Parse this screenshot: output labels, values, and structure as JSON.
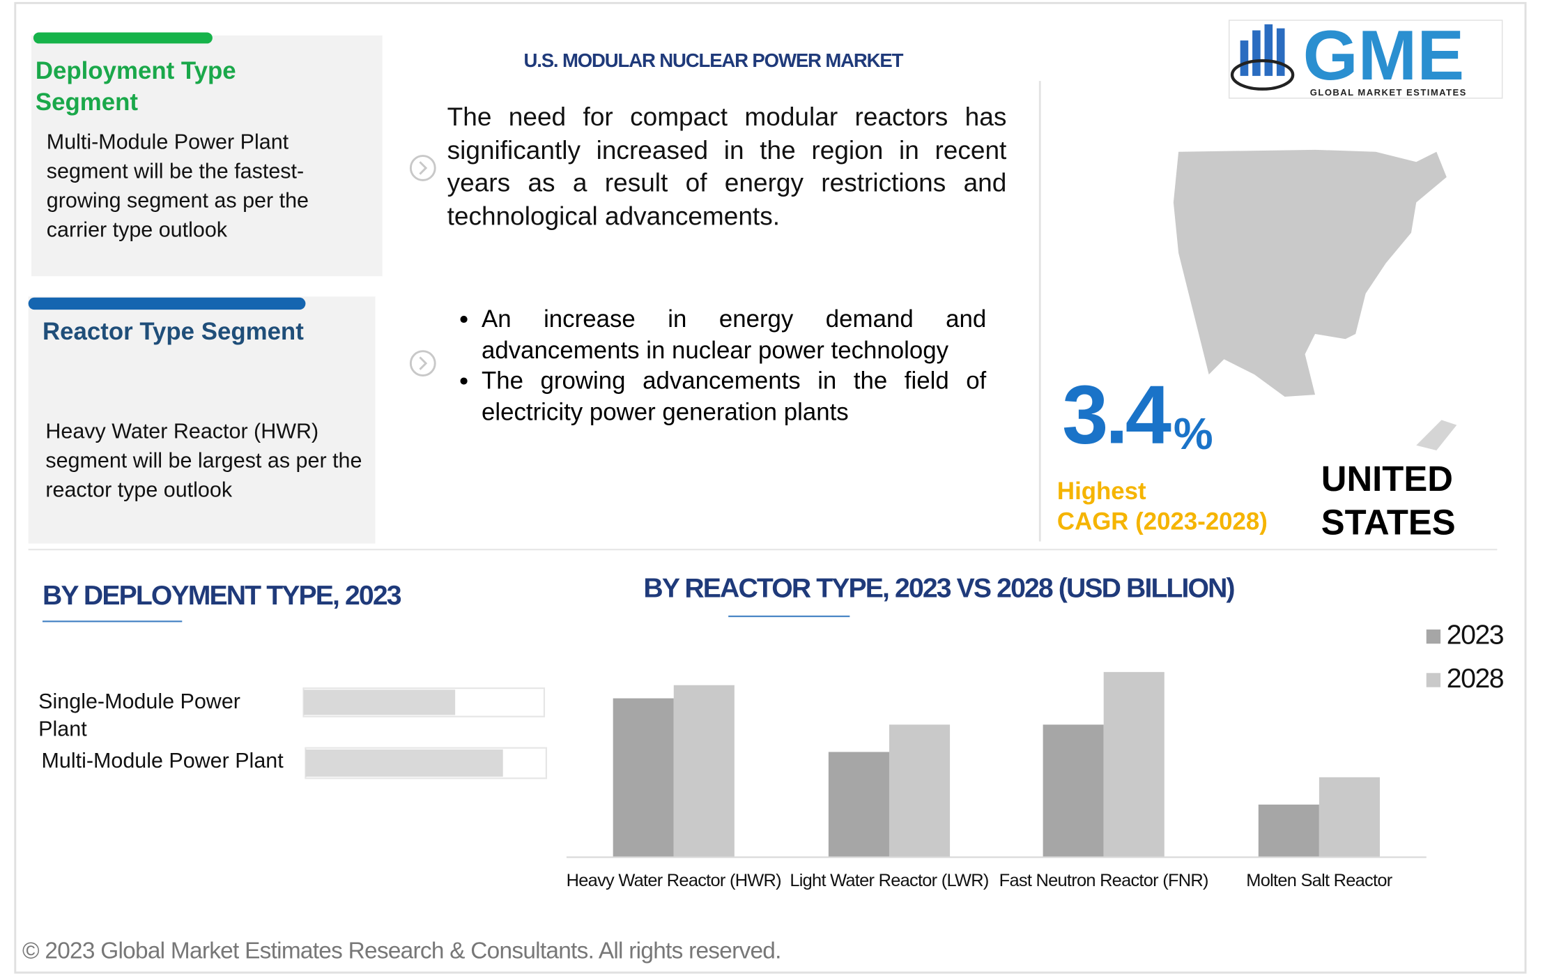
{
  "header": {
    "title": "U.S. MODULAR NUCLEAR POWER  MARKET",
    "logo": "GME",
    "logo_subtitle": "GLOBAL MARKET ESTIMATES"
  },
  "segments": [
    {
      "title": "Deployment Type Segment",
      "text": "Multi-Module Power Plant segment will be the fastest-growing segment as per the carrier type outlook"
    },
    {
      "title": "Reactor Type Segment",
      "text": "Heavy Water Reactor (HWR) segment will be largest as per the reactor type outlook"
    }
  ],
  "summary": "The need for compact modular reactors has significantly increased in the region in recent years as a result of energy restrictions and technological advancements.",
  "drivers": [
    "An increase in energy demand and advancements in nuclear power technology",
    "The growing advancements in the field of electricity power generation plants"
  ],
  "cagr": {
    "value": "3.4",
    "unit": "%",
    "label": "Highest",
    "period": "CAGR (2023-2028)"
  },
  "region": "UNITED STATES",
  "chart_data": [
    {
      "type": "barh",
      "title": "BY DEPLOYMENT TYPE, 2023",
      "categories": [
        "Single-Module Power Plant",
        "Multi-Module Power Plant"
      ],
      "values": [
        63,
        82
      ],
      "color": "#d9d9d9",
      "xlim": [
        0,
        100
      ]
    },
    {
      "type": "bar",
      "title": "BY REACTOR TYPE, 2023 VS 2028 (USD BILLION)",
      "categories": [
        "Heavy Water Reactor (HWR)",
        "Light Water Reactor (LWR)",
        "Fast Neutron Reactor (FNR)",
        "Molten Salt Reactor"
      ],
      "series": [
        {
          "name": "2023",
          "color": "#a6a6a6",
          "values": [
            157,
            104,
            131,
            52
          ]
        },
        {
          "name": "2028",
          "color": "#c9c9c9",
          "values": [
            170,
            131,
            183,
            79
          ]
        }
      ],
      "ylim": [
        0,
        200
      ],
      "legend": "top-right"
    }
  ],
  "footer": "© 2023 Global Market Estimates Research & Consultants. All rights reserved."
}
